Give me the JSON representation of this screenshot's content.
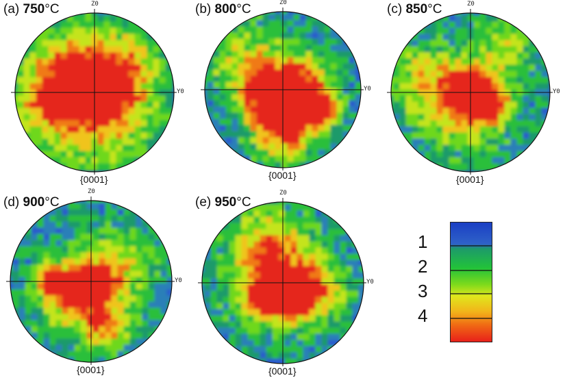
{
  "panels": [
    {
      "id": "a",
      "label_prefix": "(a)",
      "temp": "750",
      "unit": "°C",
      "plane": "{0001}",
      "z_axis": "Z0",
      "y_axis": "Y0"
    },
    {
      "id": "b",
      "label_prefix": "(b)",
      "temp": "800",
      "unit": "°C",
      "plane": "{0001}",
      "z_axis": "Z0",
      "y_axis": "Y0"
    },
    {
      "id": "c",
      "label_prefix": "(c)",
      "temp": "850",
      "unit": "°C",
      "plane": "{0001}",
      "z_axis": "Z0",
      "y_axis": "Y0"
    },
    {
      "id": "d",
      "label_prefix": "(d)",
      "temp": "900",
      "unit": "°C",
      "plane": "{0001}",
      "z_axis": "Z0",
      "y_axis": "Y0"
    },
    {
      "id": "e",
      "label_prefix": "(e)",
      "temp": "950",
      "unit": "°C",
      "plane": "{0001}",
      "z_axis": "Z0",
      "y_axis": "Y0"
    }
  ],
  "legend": {
    "levels": [
      "1",
      "2",
      "3",
      "4"
    ],
    "colors": [
      "#1a3fc4",
      "#2f62c8",
      "#1d9a6a",
      "#22c23a",
      "#6ed81c",
      "#d8e61c",
      "#f2b31a",
      "#f06a14",
      "#e8201a"
    ]
  },
  "colors": {
    "background_blue": "#2a5ccc",
    "green": "#2bbf3a",
    "yellow": "#dfe51f",
    "red": "#e5281a"
  }
}
